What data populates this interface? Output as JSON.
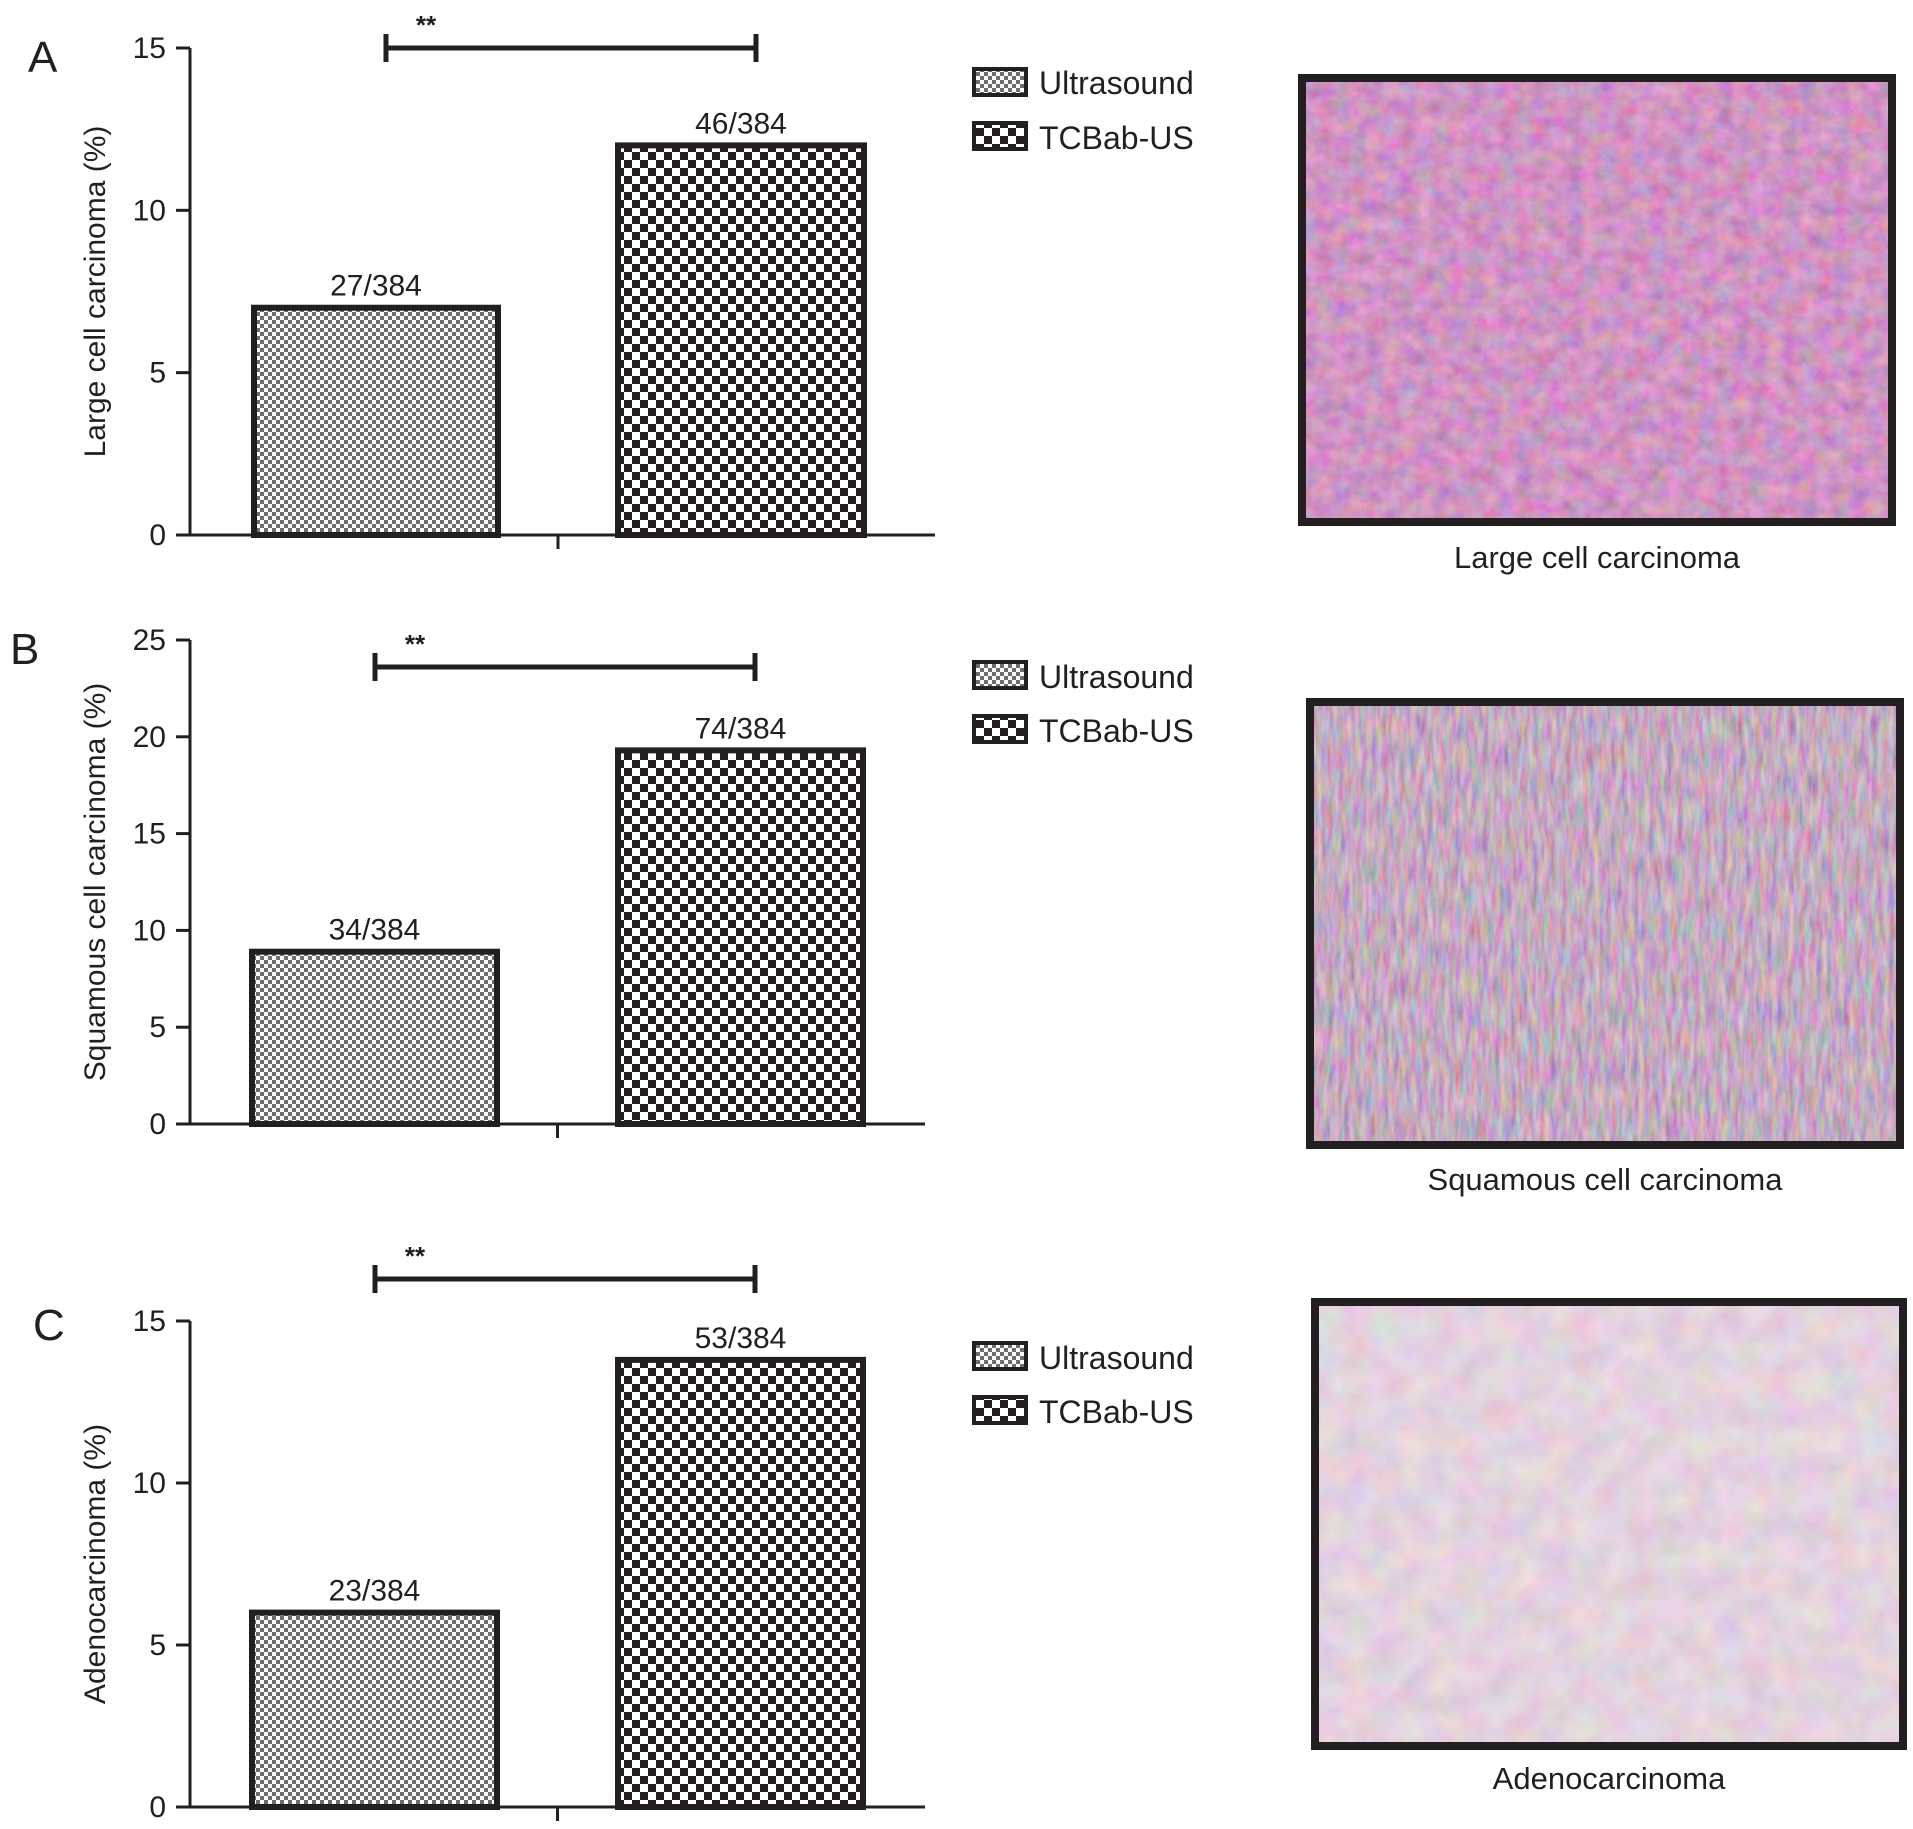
{
  "colors": {
    "ink": "#231f20",
    "background": "#ffffff"
  },
  "legend_labels": [
    "Ultrasound",
    "TCBab-US"
  ],
  "chart_data": [
    {
      "type": "bar",
      "panel": "A",
      "ylabel": "Large cell carcinoma (%)",
      "ylim": [
        0,
        15
      ],
      "yticks": [
        0,
        5,
        10,
        15
      ],
      "series": [
        {
          "name": "Ultrasound",
          "pattern": "fine-checker",
          "value": 7.0,
          "label": "27/384"
        },
        {
          "name": "TCBab-US",
          "pattern": "coarse-checker",
          "value": 12.0,
          "label": "46/384"
        }
      ],
      "significance": "**",
      "legend": [
        "Ultrasound",
        "TCBab-US"
      ],
      "image_caption": "Large cell carcinoma"
    },
    {
      "type": "bar",
      "panel": "B",
      "ylabel": "Squamous cell carcinoma (%)",
      "ylim": [
        0,
        25
      ],
      "yticks": [
        0,
        5,
        10,
        15,
        20,
        25
      ],
      "series": [
        {
          "name": "Ultrasound",
          "pattern": "fine-checker",
          "value": 8.9,
          "label": "34/384"
        },
        {
          "name": "TCBab-US",
          "pattern": "coarse-checker",
          "value": 19.3,
          "label": "74/384"
        }
      ],
      "significance": "**",
      "legend": [
        "Ultrasound",
        "TCBab-US"
      ],
      "image_caption": "Squamous cell carcinoma"
    },
    {
      "type": "bar",
      "panel": "C",
      "ylabel": "Adenocarcinoma (%)",
      "ylim": [
        0,
        15
      ],
      "yticks": [
        0,
        5,
        10,
        15
      ],
      "series": [
        {
          "name": "Ultrasound",
          "pattern": "fine-checker",
          "value": 6.0,
          "label": "23/384"
        },
        {
          "name": "TCBab-US",
          "pattern": "coarse-checker",
          "value": 13.8,
          "label": "53/384"
        }
      ],
      "significance": "**",
      "legend": [
        "Ultrasound",
        "TCBab-US"
      ],
      "image_caption": "Adenocarcinoma"
    }
  ]
}
